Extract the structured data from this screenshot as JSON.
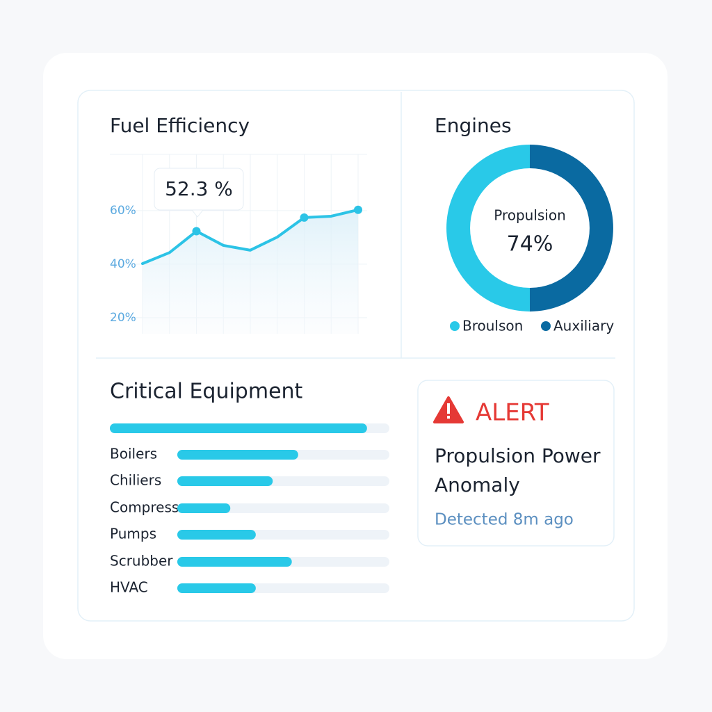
{
  "chart_data": [
    {
      "type": "line",
      "title": "Fuel Efficiency",
      "categories": [
        null,
        null,
        null,
        null,
        null,
        null,
        null,
        null,
        null
      ],
      "values": [
        40.2,
        44.3,
        52.3,
        47,
        45.2,
        50.1,
        57.4,
        57.9,
        60.3
      ],
      "color": "#2cc3e6",
      "annotation": "52.3 %",
      "ylim": [
        14,
        81
      ],
      "yticks": [
        {
          "value": 20,
          "label": "20%"
        },
        {
          "value": 40,
          "label": "40%"
        },
        {
          "value": 60,
          "label": "60%"
        }
      ],
      "grid": true
    },
    {
      "type": "donut",
      "title": "Engines",
      "categories": [
        "Broulson",
        "Auxiliary"
      ],
      "values": [
        50,
        50
      ],
      "colors": [
        "#29c9e8",
        "#0a6aa1"
      ],
      "center_text": "Propulsion",
      "center_value": 74,
      "center_value_label": "74%"
    },
    {
      "type": "hbar",
      "title": "Critical Equipment",
      "categories": [
        null,
        "Boilers",
        "Chiliers",
        "Compressors",
        "Pumps",
        "Scrubber",
        "HVAC"
      ],
      "values": [
        92,
        57,
        45,
        25,
        37,
        54,
        37
      ],
      "color": "#29c9e8",
      "xlim": [
        0,
        100
      ]
    }
  ],
  "alert": {
    "label": "ALERT",
    "message_lines": [
      "Propulsion Power",
      "Anomaly"
    ],
    "detail": "Detected 8m ago"
  }
}
